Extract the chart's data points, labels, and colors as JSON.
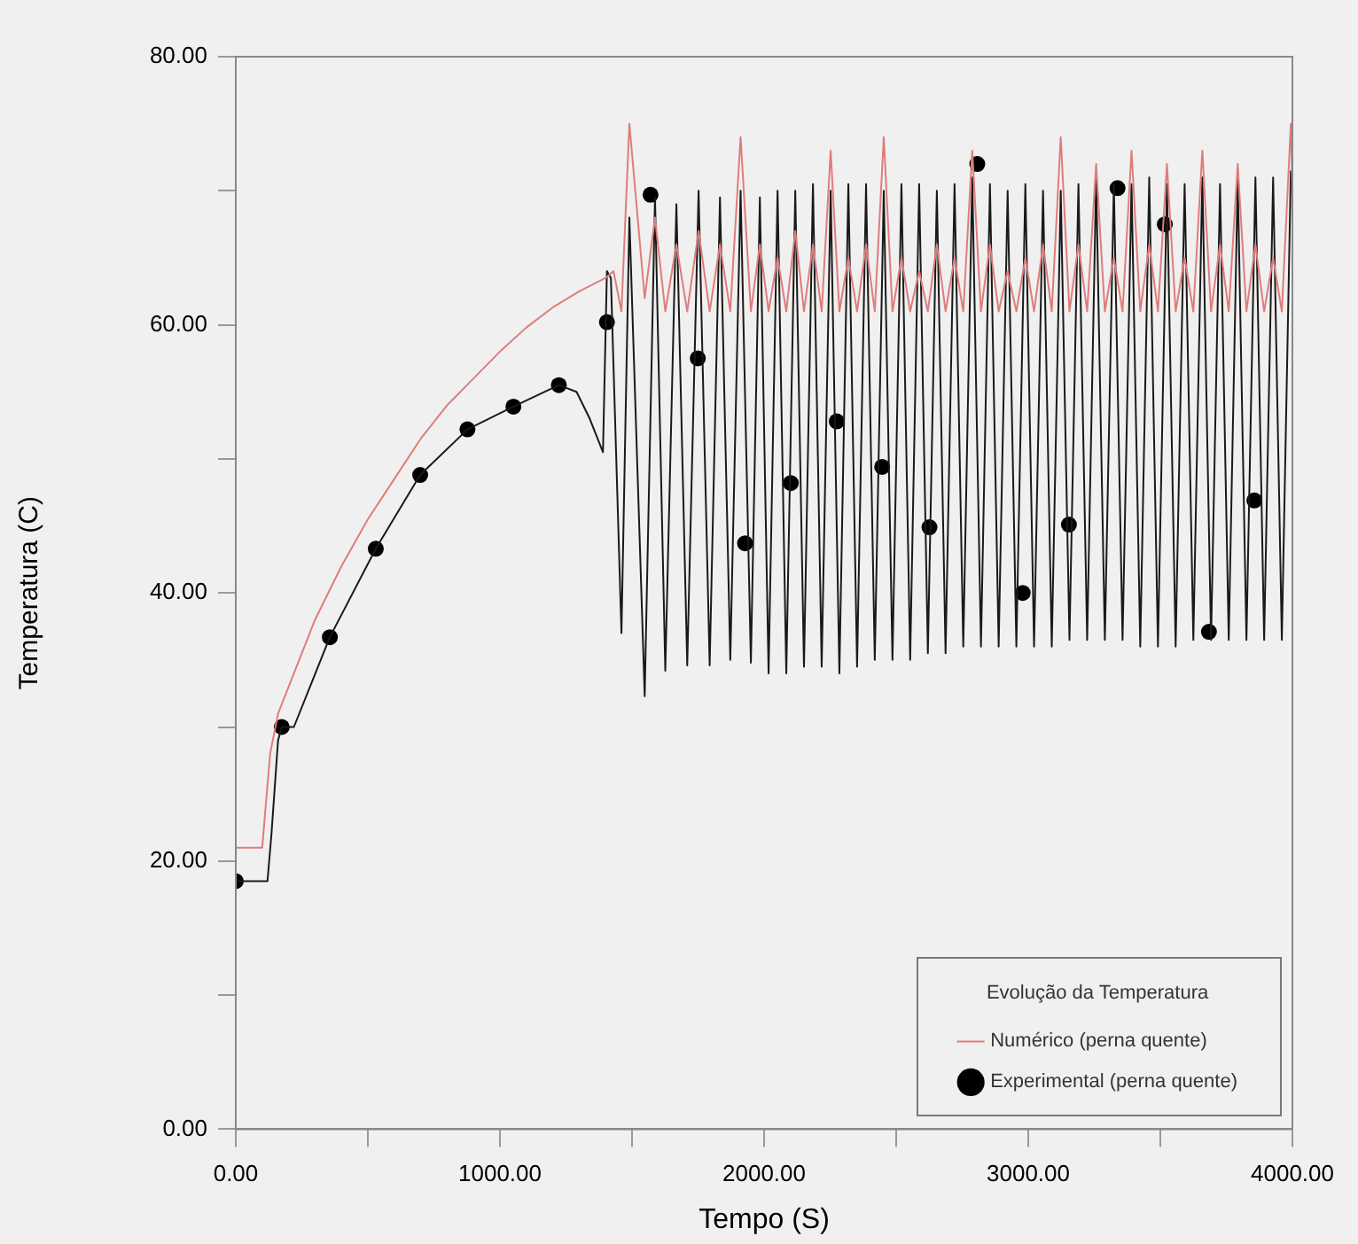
{
  "chart_data": {
    "type": "line",
    "xlabel": "Tempo (S)",
    "ylabel": "Temperatura (C)",
    "legend_title": "Evolução da Temperatura",
    "legend": "bottom right",
    "grid": false,
    "xlim": [
      0,
      4000
    ],
    "xticks": [
      {
        "value": 0,
        "label": "0.00"
      },
      {
        "value": 500,
        "label": null
      },
      {
        "value": 1000,
        "label": "1000.00"
      },
      {
        "value": 1500,
        "label": null
      },
      {
        "value": 2000,
        "label": "2000.00"
      },
      {
        "value": 2500,
        "label": null
      },
      {
        "value": 3000,
        "label": "3000.00"
      },
      {
        "value": 3500,
        "label": null
      },
      {
        "value": 4000,
        "label": "4000.00"
      }
    ],
    "ylim": [
      0,
      80
    ],
    "yticks": [
      {
        "value": 0,
        "label": "0.00"
      },
      {
        "value": 10,
        "label": null
      },
      {
        "value": 20,
        "label": "20.00"
      },
      {
        "value": 30,
        "label": null
      },
      {
        "value": 40,
        "label": "40.00"
      },
      {
        "value": 50,
        "label": null
      },
      {
        "value": 60,
        "label": "60.00"
      },
      {
        "value": 70,
        "label": null
      },
      {
        "value": 80,
        "label": "80.00"
      }
    ],
    "series": [
      {
        "name": "Numérico (perna quente)",
        "color": "#e07c7c",
        "x": [
          0,
          100,
          130,
          160,
          200,
          300,
          400,
          500,
          600,
          700,
          800,
          900,
          1000,
          1100,
          1200,
          1300,
          1400,
          1430,
          1460,
          1490,
          1548,
          1587,
          1626,
          1668,
          1709,
          1752,
          1794,
          1833,
          1872,
          1911,
          1950,
          1984,
          2017,
          2051,
          2084,
          2118,
          2151,
          2185,
          2218,
          2252,
          2285,
          2319,
          2352,
          2386,
          2419,
          2453,
          2486,
          2520,
          2553,
          2587,
          2620,
          2654,
          2687,
          2721,
          2754,
          2788,
          2821,
          2855,
          2888,
          2922,
          2955,
          2989,
          3022,
          3056,
          3089,
          3123,
          3156,
          3190,
          3223,
          3257,
          3290,
          3324,
          3357,
          3391,
          3424,
          3458,
          3491,
          3525,
          3558,
          3592,
          3625,
          3659,
          3692,
          3726,
          3759,
          3793,
          3826,
          3860,
          3893,
          3927,
          3960,
          3994,
          4000
        ],
        "values": [
          21,
          21,
          28,
          31,
          33,
          38,
          42,
          45.5,
          48.5,
          51.5,
          54,
          56,
          58,
          59.8,
          61.3,
          62.5,
          63.5,
          64,
          61,
          75,
          62,
          68,
          61,
          66,
          61,
          67,
          61,
          66,
          61,
          74,
          61,
          66,
          61,
          65,
          61,
          67,
          61,
          66,
          61,
          73,
          61,
          65,
          61,
          66,
          61,
          74,
          61,
          65,
          61,
          64,
          61,
          66,
          61,
          65,
          61,
          73,
          61,
          66,
          61,
          64,
          61,
          65,
          61,
          66,
          61,
          74,
          61,
          66,
          61,
          72,
          61,
          65,
          61,
          73,
          61,
          66,
          61,
          72,
          61,
          65,
          61,
          73,
          61,
          66,
          61,
          72,
          61,
          66,
          61,
          65,
          61,
          75,
          70
        ]
      },
      {
        "color": "#1a1a1a",
        "x": [
          0,
          120,
          135,
          160,
          174,
          220,
          356,
          530,
          698,
          877,
          1051,
          1223,
          1290,
          1340,
          1390,
          1405,
          1420,
          1460,
          1490,
          1548,
          1587,
          1626,
          1668,
          1709,
          1752,
          1794,
          1833,
          1872,
          1911,
          1950,
          1984,
          2017,
          2051,
          2084,
          2118,
          2151,
          2185,
          2218,
          2252,
          2285,
          2319,
          2352,
          2386,
          2419,
          2453,
          2486,
          2520,
          2553,
          2587,
          2620,
          2654,
          2687,
          2721,
          2754,
          2788,
          2821,
          2855,
          2888,
          2922,
          2955,
          2989,
          3022,
          3056,
          3089,
          3123,
          3156,
          3190,
          3223,
          3257,
          3290,
          3324,
          3357,
          3391,
          3424,
          3458,
          3491,
          3525,
          3558,
          3592,
          3625,
          3659,
          3692,
          3726,
          3759,
          3793,
          3826,
          3860,
          3893,
          3927,
          3960,
          3994
        ],
        "values": [
          18.5,
          18.5,
          22,
          29,
          30,
          30,
          36.7,
          43.3,
          48.8,
          52.2,
          53.9,
          55.5,
          55,
          53,
          50.5,
          64,
          63.5,
          37,
          68,
          32.3,
          69.5,
          34.2,
          69,
          34.6,
          70,
          34.6,
          69.5,
          35,
          70,
          34.8,
          69.5,
          34,
          70,
          34,
          70,
          34.5,
          70.5,
          34.5,
          70,
          34,
          70.5,
          34.5,
          70.5,
          35,
          70,
          35,
          70.5,
          35,
          70.5,
          35.5,
          70,
          35.5,
          70.5,
          36,
          71,
          36,
          70.5,
          36,
          70,
          36,
          70.5,
          36,
          70,
          36,
          70,
          36.5,
          70.5,
          36.5,
          71,
          36.5,
          70.5,
          36.5,
          70.5,
          36,
          71,
          36,
          70.5,
          36,
          70.5,
          36.5,
          71,
          36.5,
          70.5,
          36.5,
          71,
          36.5,
          71,
          36.5,
          71,
          36.5,
          71.5
        ]
      },
      {
        "name": "Experimental (perna quente)",
        "type": "scatter",
        "marker": "circle",
        "color": "#000000",
        "x": [
          0,
          174,
          356,
          530,
          698,
          877,
          1051,
          1223,
          1405,
          1570,
          1749,
          1928,
          2101,
          2275,
          2447,
          2626,
          2807,
          2979,
          3154,
          3338,
          3517,
          3684,
          3856
        ],
        "values": [
          18.5,
          30,
          36.7,
          43.3,
          48.8,
          52.2,
          53.9,
          55.5,
          60.2,
          69.7,
          57.5,
          43.7,
          48.2,
          52.8,
          49.4,
          44.9,
          72,
          40,
          45.1,
          70.2,
          67.5,
          37.1,
          46.9
        ]
      }
    ]
  }
}
